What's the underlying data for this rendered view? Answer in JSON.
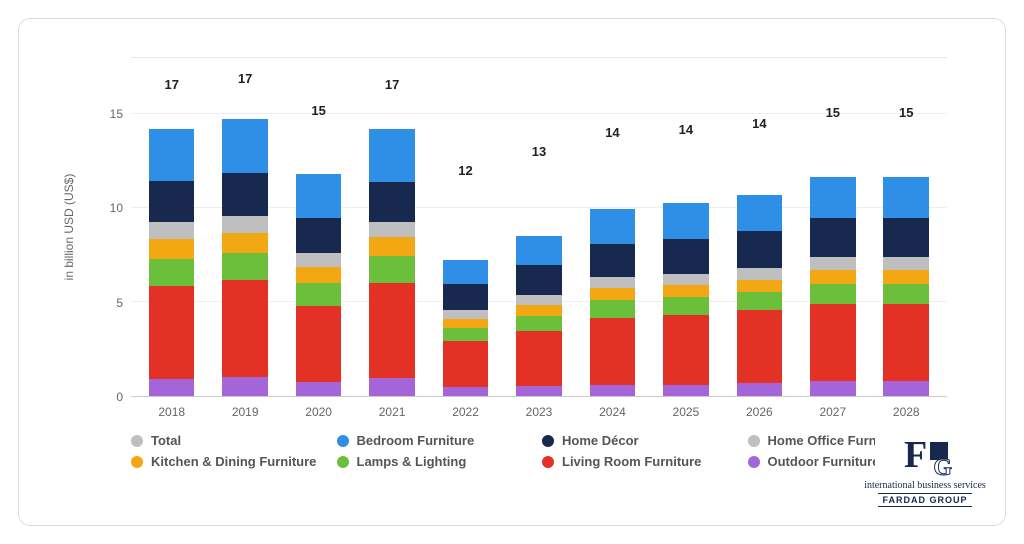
{
  "chart": {
    "type": "stacked-bar",
    "ylabel": "in billion USD (US$)",
    "label_fontsize": 12,
    "label_color": "#666666",
    "ylim": [
      0,
      18
    ],
    "ytick_step": 5,
    "yticks": [
      0,
      5,
      10,
      15
    ],
    "grid_color": "#eeeeee",
    "axis_color": "#cccccc",
    "background_color": "#ffffff",
    "bar_width": 0.62,
    "total_label_fontsize": 13,
    "total_label_color": "#222222",
    "categories": [
      "2018",
      "2019",
      "2020",
      "2021",
      "2022",
      "2023",
      "2024",
      "2025",
      "2026",
      "2027",
      "2028"
    ],
    "totals": [
      17,
      17,
      15,
      17,
      12,
      13,
      14,
      14,
      14,
      15,
      15
    ],
    "series": [
      {
        "key": "total",
        "label": "Total",
        "color": "#bfbfbf",
        "values": [
          0,
          0,
          0,
          0,
          0,
          0,
          0,
          0,
          0,
          0,
          0
        ]
      },
      {
        "key": "bedroom",
        "label": "Bedroom Furniture",
        "color": "#2f8fe6",
        "values": [
          3.1,
          3.2,
          2.9,
          3.2,
          2.0,
          2.3,
          2.5,
          2.5,
          2.5,
          2.7,
          2.7
        ]
      },
      {
        "key": "decor",
        "label": "Home Décor",
        "color": "#17294f",
        "values": [
          2.5,
          2.5,
          2.3,
          2.4,
          2.2,
          2.3,
          2.4,
          2.5,
          2.6,
          2.6,
          2.6
        ]
      },
      {
        "key": "office",
        "label": "Home Office Furniture",
        "color": "#bfbfbf",
        "values": [
          1.0,
          1.0,
          0.9,
          0.9,
          0.7,
          0.8,
          0.8,
          0.8,
          0.8,
          0.9,
          0.9
        ]
      },
      {
        "key": "kitchen",
        "label": "Kitchen & Dining Furniture",
        "color": "#f3a712",
        "values": [
          1.2,
          1.2,
          1.1,
          1.1,
          0.8,
          0.8,
          0.8,
          0.8,
          0.8,
          0.9,
          0.9
        ]
      },
      {
        "key": "lamps",
        "label": "Lamps & Lighting",
        "color": "#6bbf3a",
        "values": [
          1.6,
          1.6,
          1.5,
          1.6,
          1.1,
          1.2,
          1.3,
          1.3,
          1.3,
          1.3,
          1.3
        ]
      },
      {
        "key": "living",
        "label": "Living Room Furniture",
        "color": "#e33126",
        "values": [
          5.6,
          5.7,
          5.0,
          5.7,
          3.8,
          4.2,
          4.8,
          4.9,
          5.0,
          5.1,
          5.1
        ]
      },
      {
        "key": "outdoor",
        "label": "Outdoor Furniture",
        "color": "#a465d9",
        "values": [
          1.0,
          1.1,
          0.9,
          1.1,
          0.8,
          0.8,
          0.8,
          0.8,
          0.9,
          1.0,
          1.0
        ]
      }
    ],
    "stack_order": [
      "outdoor",
      "living",
      "lamps",
      "kitchen",
      "office",
      "decor",
      "bedroom"
    ]
  },
  "logo": {
    "tagline": "international business services",
    "name": "FARDAD GROUP"
  }
}
